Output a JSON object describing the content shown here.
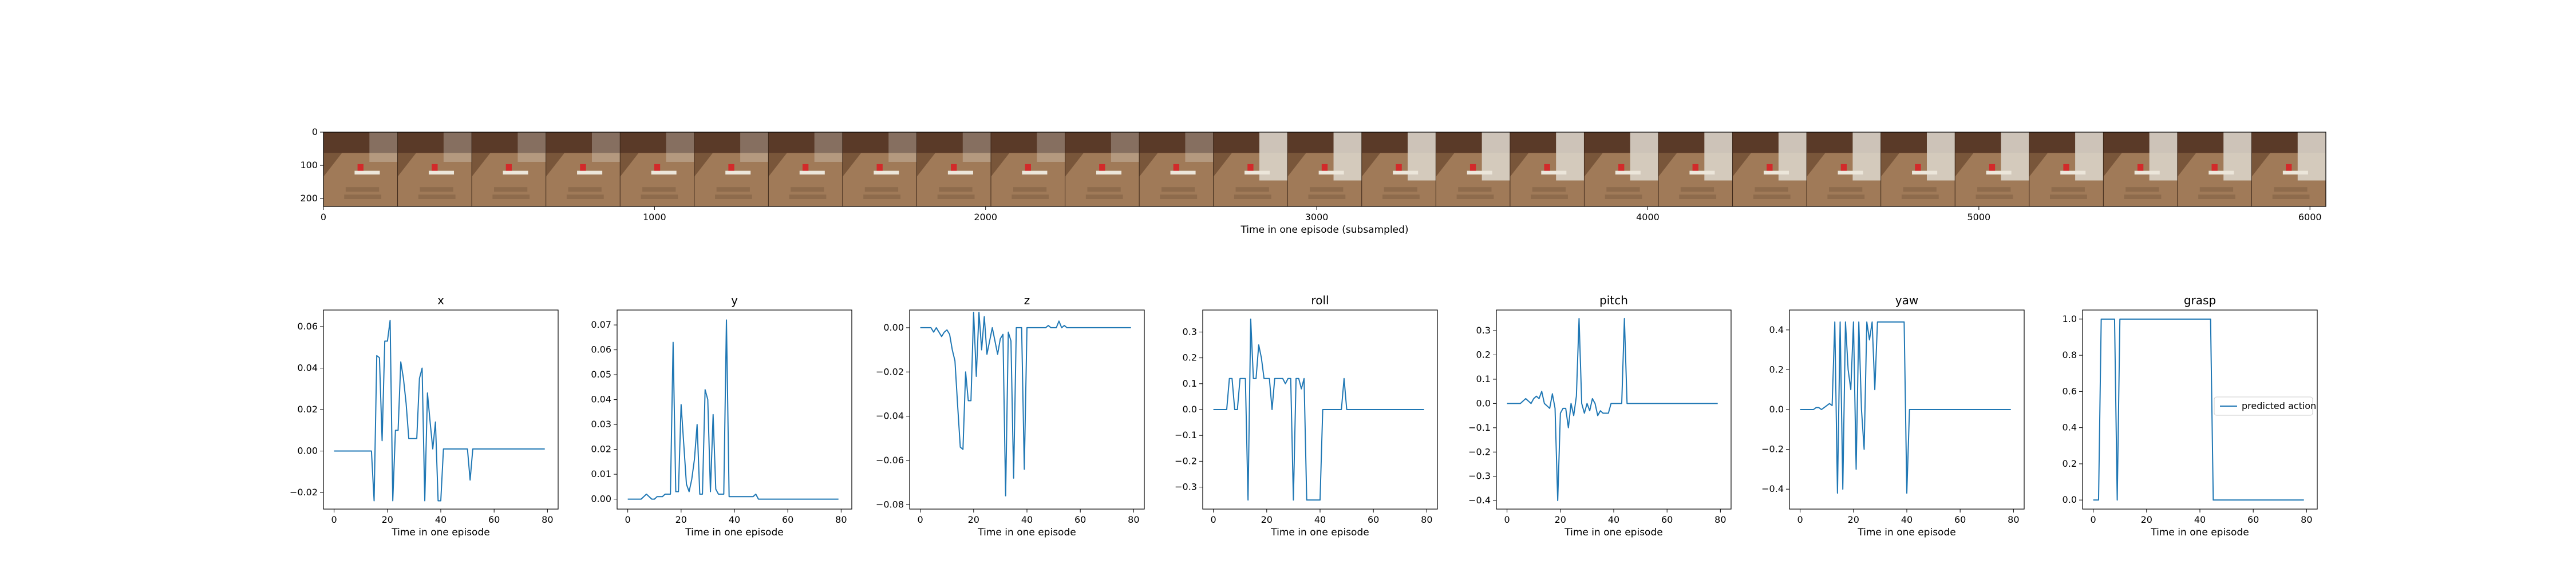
{
  "strip": {
    "xlabel": "Time in one episode (subsampled)",
    "xticks": [
      0,
      1000,
      2000,
      3000,
      4000,
      5000,
      6000
    ],
    "yticks": [
      0,
      100,
      200
    ],
    "xlim": [
      0,
      6048
    ],
    "ylim": [
      224,
      0
    ],
    "frame_count": 27,
    "colors": {
      "table": "#a07a58",
      "table_dark": "#6f4d33",
      "wall": "#5a3a28",
      "marker": "#d22a2a",
      "paper": "#ece6da"
    }
  },
  "line_color": "#1f77b4",
  "legend": {
    "label": "predicted action",
    "placement": "center-right of grasp panel"
  },
  "chart_data": [
    {
      "type": "line",
      "title": "x",
      "xlabel": "Time in one episode",
      "xlim": [
        -4,
        84
      ],
      "ylim": [
        -0.028,
        0.068
      ],
      "xticks": [
        0,
        20,
        40,
        60,
        80
      ],
      "yticks": [
        -0.02,
        0.0,
        0.02,
        0.04,
        0.06
      ],
      "ytick_labels": [
        "−0.02",
        "0.00",
        "0.02",
        "0.04",
        "0.06"
      ],
      "values": [
        0,
        0,
        0,
        0,
        0,
        0,
        0,
        0,
        0,
        0,
        0,
        0,
        0,
        0,
        0,
        -0.024,
        0.046,
        0.045,
        0.005,
        0.053,
        0.053,
        0.063,
        -0.024,
        0.01,
        0.01,
        0.043,
        0.035,
        0.023,
        0.006,
        0.006,
        0.006,
        0.006,
        0.035,
        0.04,
        -0.024,
        0.028,
        0.014,
        0.001,
        0.014,
        -0.024,
        -0.024,
        0.001,
        0.001,
        0.001,
        0.001,
        0.001,
        0.001,
        0.001,
        0.001,
        0.001,
        0.001,
        -0.014,
        0.001,
        0.001,
        0.001,
        0.001,
        0.001,
        0.001,
        0.001,
        0.001,
        0.001,
        0.001,
        0.001,
        0.001,
        0.001,
        0.001,
        0.001,
        0.001,
        0.001,
        0.001,
        0.001,
        0.001,
        0.001,
        0.001,
        0.001,
        0.001,
        0.001,
        0.001,
        0.001,
        0.001
      ]
    },
    {
      "type": "line",
      "title": "y",
      "xlabel": "Time in one episode",
      "xlim": [
        -4,
        84
      ],
      "ylim": [
        -0.004,
        0.076
      ],
      "xticks": [
        0,
        20,
        40,
        60,
        80
      ],
      "yticks": [
        0.0,
        0.01,
        0.02,
        0.03,
        0.04,
        0.05,
        0.06,
        0.07
      ],
      "ytick_labels": [
        "0.00",
        "0.01",
        "0.02",
        "0.03",
        "0.04",
        "0.05",
        "0.06",
        "0.07"
      ],
      "values": [
        0,
        0,
        0,
        0,
        0,
        0,
        0.001,
        0.002,
        0.001,
        0,
        0,
        0.001,
        0.001,
        0.001,
        0.002,
        0.002,
        0.002,
        0.063,
        0.003,
        0.003,
        0.038,
        0.022,
        0.006,
        0.003,
        0.008,
        0.016,
        0.03,
        0.002,
        0.002,
        0.044,
        0.04,
        0.003,
        0.034,
        0.004,
        0.002,
        0.002,
        0.002,
        0.072,
        0.001,
        0.001,
        0.001,
        0.001,
        0.001,
        0.001,
        0.001,
        0.001,
        0.001,
        0.001,
        0.002,
        0,
        0,
        0,
        0,
        0,
        0,
        0,
        0,
        0,
        0,
        0,
        0,
        0,
        0,
        0,
        0,
        0,
        0,
        0,
        0,
        0,
        0,
        0,
        0,
        0,
        0,
        0,
        0,
        0,
        0,
        0
      ]
    },
    {
      "type": "line",
      "title": "z",
      "xlabel": "Time in one episode",
      "xlim": [
        -4,
        84
      ],
      "ylim": [
        -0.082,
        0.008
      ],
      "xticks": [
        0,
        20,
        40,
        60,
        80
      ],
      "yticks": [
        -0.08,
        -0.06,
        -0.04,
        -0.02,
        0.0
      ],
      "ytick_labels": [
        "−0.08",
        "−0.06",
        "−0.04",
        "−0.02",
        "0.00"
      ],
      "values": [
        0,
        0,
        0,
        0,
        0,
        -0.002,
        0,
        -0.002,
        -0.004,
        -0.002,
        -0.001,
        -0.003,
        -0.01,
        -0.015,
        -0.035,
        -0.054,
        -0.055,
        -0.02,
        -0.033,
        -0.033,
        0.007,
        -0.022,
        0.007,
        -0.01,
        0.005,
        -0.012,
        -0.006,
        0,
        -0.006,
        -0.012,
        -0.005,
        -0.003,
        -0.076,
        -0.002,
        -0.006,
        -0.068,
        0,
        0,
        0,
        -0.064,
        0,
        0,
        0,
        0,
        0,
        0,
        0,
        0,
        0.001,
        0,
        0,
        0,
        0.003,
        0,
        0.001,
        0,
        0,
        0,
        0,
        0,
        0,
        0,
        0,
        0,
        0,
        0,
        0,
        0,
        0,
        0,
        0,
        0,
        0,
        0,
        0,
        0,
        0,
        0,
        0,
        0
      ]
    },
    {
      "type": "line",
      "title": "roll",
      "xlabel": "Time in one episode",
      "xlim": [
        -4,
        84
      ],
      "ylim": [
        -0.385,
        0.385
      ],
      "xticks": [
        0,
        20,
        40,
        60,
        80
      ],
      "yticks": [
        -0.3,
        -0.2,
        -0.1,
        0.0,
        0.1,
        0.2,
        0.3
      ],
      "ytick_labels": [
        "−0.3",
        "−0.2",
        "−0.1",
        "0.0",
        "0.1",
        "0.2",
        "0.3"
      ],
      "values": [
        0,
        0,
        0,
        0,
        0,
        0,
        0.12,
        0.12,
        0,
        0,
        0.12,
        0.12,
        0.12,
        -0.35,
        0.35,
        0.12,
        0.12,
        0.25,
        0.2,
        0.12,
        0.12,
        0.12,
        0,
        0.12,
        0.12,
        0.12,
        0.12,
        0.1,
        0.12,
        0.12,
        -0.35,
        0.12,
        0.12,
        0.08,
        0.12,
        -0.35,
        -0.35,
        -0.35,
        -0.35,
        -0.35,
        -0.35,
        0,
        0,
        0,
        0,
        0,
        0,
        0,
        0,
        0.12,
        0,
        0,
        0,
        0,
        0,
        0,
        0,
        0,
        0,
        0,
        0,
        0,
        0,
        0,
        0,
        0,
        0,
        0,
        0,
        0,
        0,
        0,
        0,
        0,
        0,
        0,
        0,
        0,
        0,
        0
      ]
    },
    {
      "type": "line",
      "title": "pitch",
      "xlabel": "Time in one episode",
      "xlim": [
        -4,
        84
      ],
      "ylim": [
        -0.435,
        0.385
      ],
      "xticks": [
        0,
        20,
        40,
        60,
        80
      ],
      "yticks": [
        -0.4,
        -0.3,
        -0.2,
        -0.1,
        0.0,
        0.1,
        0.2,
        0.3
      ],
      "ytick_labels": [
        "−0.4",
        "−0.3",
        "−0.2",
        "−0.1",
        "0.0",
        "0.1",
        "0.2",
        "0.3"
      ],
      "values": [
        0,
        0,
        0,
        0,
        0,
        0,
        0.01,
        0.02,
        0.01,
        0,
        0.02,
        0.03,
        0.02,
        0.05,
        0,
        -0.01,
        -0.02,
        0.04,
        -0.02,
        -0.4,
        -0.04,
        -0.02,
        -0.02,
        -0.1,
        0,
        -0.05,
        0.03,
        0.35,
        0,
        -0.04,
        0,
        -0.03,
        0.02,
        0,
        -0.05,
        -0.03,
        -0.04,
        -0.04,
        -0.04,
        0,
        0,
        0,
        0,
        0,
        0.35,
        0,
        0,
        0,
        0,
        0,
        0,
        0,
        0,
        0,
        0,
        0,
        0,
        0,
        0,
        0,
        0,
        0,
        0,
        0,
        0,
        0,
        0,
        0,
        0,
        0,
        0,
        0,
        0,
        0,
        0,
        0,
        0,
        0,
        0,
        0
      ]
    },
    {
      "type": "line",
      "title": "yaw",
      "xlabel": "Time in one episode",
      "xlim": [
        -4,
        84
      ],
      "ylim": [
        -0.5,
        0.5
      ],
      "xticks": [
        0,
        20,
        40,
        60,
        80
      ],
      "yticks": [
        -0.4,
        -0.2,
        0.0,
        0.2,
        0.4
      ],
      "ytick_labels": [
        "−0.4",
        "−0.2",
        "0.0",
        "0.2",
        "0.4"
      ],
      "values": [
        0,
        0,
        0,
        0,
        0,
        0,
        0.01,
        0.01,
        0,
        0.01,
        0.02,
        0.03,
        0.02,
        0.44,
        -0.42,
        0.44,
        -0.4,
        0.44,
        0.2,
        0.1,
        0.44,
        -0.3,
        0.44,
        0,
        -0.2,
        0.44,
        0.35,
        0.44,
        0.1,
        0.44,
        0.44,
        0.44,
        0.44,
        0.44,
        0.44,
        0.44,
        0.44,
        0.44,
        0.44,
        0.44,
        -0.42,
        0,
        0,
        0,
        0,
        0,
        0,
        0,
        0,
        0,
        0,
        0,
        0,
        0,
        0,
        0,
        0,
        0,
        0,
        0,
        0,
        0,
        0,
        0,
        0,
        0,
        0,
        0,
        0,
        0,
        0,
        0,
        0,
        0,
        0,
        0,
        0,
        0,
        0,
        0
      ]
    },
    {
      "type": "line",
      "title": "grasp",
      "xlabel": "Time in one episode",
      "xlim": [
        -4,
        84
      ],
      "ylim": [
        -0.05,
        1.05
      ],
      "xticks": [
        0,
        20,
        40,
        60,
        80
      ],
      "yticks": [
        0.0,
        0.2,
        0.4,
        0.6,
        0.8,
        1.0
      ],
      "ytick_labels": [
        "0.0",
        "0.2",
        "0.4",
        "0.6",
        "0.8",
        "1.0"
      ],
      "values": [
        0,
        0,
        0,
        1,
        1,
        1,
        1,
        1,
        1,
        0,
        1,
        1,
        1,
        1,
        1,
        1,
        1,
        1,
        1,
        1,
        1,
        1,
        1,
        1,
        1,
        1,
        1,
        1,
        1,
        1,
        1,
        1,
        1,
        1,
        1,
        1,
        1,
        1,
        1,
        1,
        1,
        1,
        1,
        1,
        1,
        0,
        0,
        0,
        0,
        0,
        0,
        0,
        0,
        0,
        0,
        0,
        0,
        0,
        0,
        0,
        0,
        0,
        0,
        0,
        0,
        0,
        0,
        0,
        0,
        0,
        0,
        0,
        0,
        0,
        0,
        0,
        0,
        0,
        0,
        0
      ]
    }
  ]
}
